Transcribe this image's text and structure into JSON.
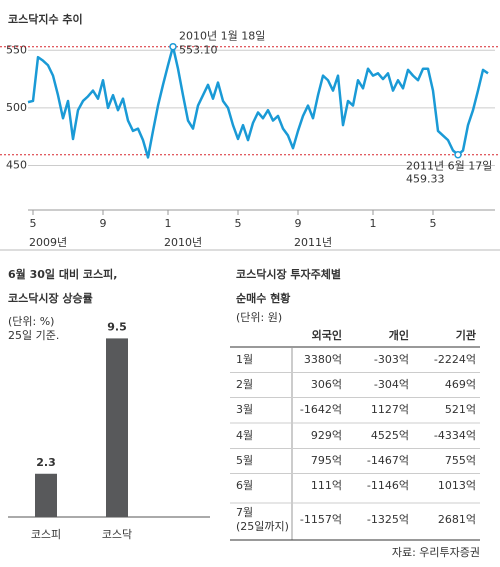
{
  "chart_data": [
    {
      "type": "line",
      "title": "코스닥지수 추이",
      "color": "#1a9ad6",
      "categories": [
        null,
        "5",
        null,
        null,
        null,
        null,
        null,
        null,
        null,
        null,
        null,
        null,
        null,
        null,
        null,
        "9",
        null,
        null,
        null,
        null,
        null,
        null,
        null,
        null,
        null,
        null,
        null,
        null,
        "1",
        null,
        null,
        null,
        null,
        null,
        null,
        null,
        null,
        null,
        null,
        null,
        null,
        null,
        "5",
        null,
        null,
        null,
        null,
        null,
        null,
        null,
        null,
        null,
        null,
        null,
        "9",
        null,
        null,
        null,
        null,
        null,
        null,
        null,
        null,
        null,
        null,
        null,
        null,
        null,
        null,
        "1",
        null,
        null,
        null,
        null,
        null,
        null,
        null,
        null,
        null,
        null,
        null,
        "5",
        null,
        null,
        null,
        null,
        null,
        null,
        null,
        null,
        null,
        null,
        null
      ],
      "category_groups": [
        null,
        "2009년",
        null,
        null,
        null,
        null,
        null,
        null,
        null,
        null,
        null,
        null,
        null,
        null,
        null,
        null,
        null,
        null,
        null,
        null,
        null,
        null,
        null,
        null,
        null,
        null,
        null,
        null,
        "2010년",
        null,
        null,
        null,
        null,
        null,
        null,
        null,
        null,
        null,
        null,
        null,
        null,
        null,
        null,
        null,
        null,
        null,
        null,
        null,
        null,
        null,
        null,
        null,
        null,
        null,
        "2011년",
        null,
        null,
        null,
        null,
        null,
        null,
        null,
        null,
        null,
        null,
        null,
        null,
        null,
        null,
        null,
        null,
        null,
        null,
        null,
        null,
        null,
        null,
        null,
        null,
        null,
        null,
        null,
        null,
        null,
        null,
        null,
        null,
        null,
        null,
        null,
        null,
        null,
        null
      ],
      "values": [
        505,
        506,
        544,
        541,
        537,
        528,
        511,
        491,
        506,
        473,
        498,
        506,
        510,
        515,
        508,
        524,
        500,
        511,
        498,
        508,
        489,
        480,
        482,
        472,
        457,
        480,
        502,
        520,
        537,
        553.1,
        534,
        511,
        489,
        482,
        502,
        511,
        520,
        508,
        522,
        506,
        500,
        485,
        473,
        485,
        472,
        487,
        496,
        491,
        498,
        489,
        493,
        482,
        476,
        465,
        480,
        493,
        502,
        491,
        511,
        528,
        524,
        515,
        528,
        485,
        506,
        502,
        524,
        517,
        534,
        528,
        530,
        525,
        530,
        515,
        524,
        517,
        533,
        528,
        524,
        534,
        534,
        515,
        480,
        476,
        472,
        463,
        459.33,
        463,
        485,
        498,
        515,
        533,
        530
      ],
      "ylim": [
        440,
        565
      ],
      "yticks": [
        450,
        500,
        550
      ],
      "grid": true,
      "annotations": [
        {
          "label": "2010년 1월 18일",
          "value": 553.1,
          "value_label": "553.10"
        },
        {
          "label": "2011년 6월 17일",
          "value": 459.33,
          "value_label": "459.33"
        }
      ]
    },
    {
      "type": "bar",
      "title": [
        "6월 30일 대비 코스피,",
        "코스닥시장 상승률"
      ],
      "subtitle": [
        "(단위: %)",
        "25일 기준."
      ],
      "color": "#58595b",
      "categories": [
        "코스피",
        "코스닥"
      ],
      "values": [
        2.3,
        9.5
      ],
      "ylim": [
        0,
        10
      ]
    }
  ],
  "table": {
    "title": [
      "코스닥시장 투자주체별",
      "순매수 현황"
    ],
    "unit": "(단위: 원)",
    "header": [
      "외국인",
      "개인",
      "기관"
    ],
    "rows": [
      {
        "label": [
          "1월"
        ],
        "cells": [
          "3380억",
          "-303억",
          "-2224억"
        ]
      },
      {
        "label": [
          "2월"
        ],
        "cells": [
          "306억",
          "-304억",
          "469억"
        ]
      },
      {
        "label": [
          "3월"
        ],
        "cells": [
          "-1642억",
          "1127억",
          "521억"
        ]
      },
      {
        "label": [
          "4월"
        ],
        "cells": [
          "929억",
          "4525억",
          "-4334억"
        ]
      },
      {
        "label": [
          "5월"
        ],
        "cells": [
          "795억",
          "-1467억",
          "755억"
        ]
      },
      {
        "label": [
          "6월"
        ],
        "cells": [
          "111억",
          "-1146억",
          "1013억"
        ]
      },
      {
        "label": [
          "7월",
          "(25일까지)"
        ],
        "cells": [
          "-1157억",
          "-1325억",
          "2681억"
        ]
      }
    ]
  },
  "source": "자료: 우리투자증권"
}
